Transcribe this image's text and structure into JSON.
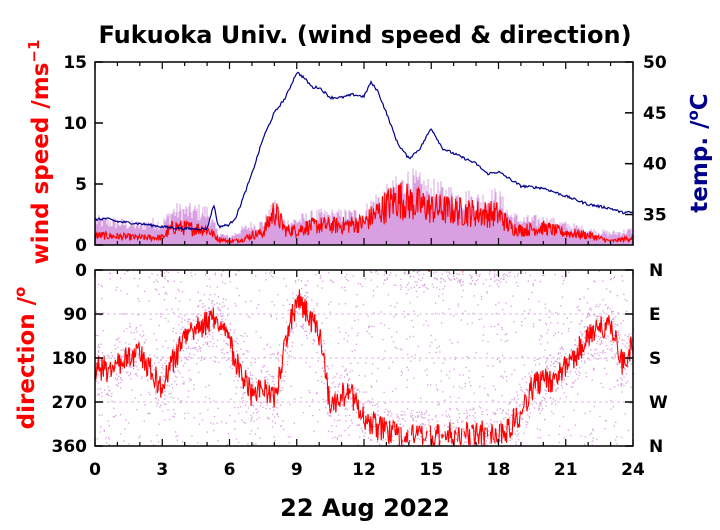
{
  "chart_data": [
    {
      "type": "line",
      "title": "Fukuoka Univ. (wind speed & direction)",
      "ylabel": "wind speed /ms",
      "ylabel_sup": "−1",
      "ylabel_right": "temp. /",
      "ylabel_right_sup": "o",
      "ylabel_right_unit": "C",
      "ylim": [
        0,
        15
      ],
      "ylim_right": [
        32,
        50
      ],
      "yticks": [
        "0",
        "5",
        "10",
        "15"
      ],
      "yticks_right": [
        "35",
        "40",
        "45",
        "50"
      ],
      "grid": false,
      "colors": {
        "gust": "#d8a0e0",
        "wind": "#ff0000",
        "temp": "#00008b"
      },
      "series": [
        {
          "role": "gust",
          "x": [
            0,
            1,
            2,
            2.5,
            3,
            3.5,
            4,
            5,
            5.5,
            6,
            6.5,
            7,
            7.5,
            8,
            8.5,
            9,
            9.5,
            10,
            11,
            12,
            12.5,
            13,
            13.5,
            14,
            15,
            16,
            17,
            18,
            18.5,
            19,
            20,
            21,
            22,
            23,
            24
          ],
          "values": [
            2.5,
            2.3,
            2,
            2.3,
            2.2,
            3.5,
            3.5,
            3.4,
            1.2,
            0.8,
            1.5,
            2,
            2.2,
            3.8,
            2.2,
            2.5,
            2.8,
            3,
            3,
            3.2,
            4.5,
            5,
            5.8,
            6.5,
            5.5,
            5,
            4.5,
            4.8,
            3,
            2.5,
            2.5,
            2,
            1.5,
            1.2,
            1.5
          ]
        },
        {
          "role": "wind",
          "x": [
            0,
            1,
            2,
            3,
            3.5,
            4,
            5,
            5.5,
            6,
            6.5,
            7,
            7.5,
            8,
            8.5,
            9,
            9.5,
            10,
            11,
            12,
            12.5,
            13,
            13.5,
            14,
            15,
            16,
            17,
            18,
            18.5,
            19,
            20,
            21,
            22,
            23,
            24
          ],
          "values": [
            0.8,
            0.7,
            0.6,
            0.6,
            1.5,
            1.4,
            1.3,
            0.5,
            0.3,
            0.4,
            0.8,
            1.0,
            2.8,
            1.2,
            1.2,
            1.5,
            1.6,
            1.6,
            1.8,
            2.5,
            3.2,
            3.8,
            3.5,
            3.0,
            2.8,
            2.6,
            2.5,
            1.5,
            1.2,
            1.4,
            1.0,
            0.8,
            0.3,
            0.6
          ]
        },
        {
          "role": "temp",
          "x": [
            0,
            0.5,
            1,
            2,
            3,
            4,
            5,
            5.3,
            5.5,
            6,
            6.3,
            7,
            7.5,
            8,
            8.5,
            9,
            9.3,
            9.7,
            10,
            10.5,
            11,
            11.5,
            12,
            12.3,
            12.6,
            13,
            13.5,
            14,
            14.5,
            15,
            15.5,
            16,
            17,
            17.5,
            18,
            19,
            20,
            21,
            22,
            23,
            23.5,
            24
          ],
          "values": [
            34.5,
            34.6,
            34.3,
            34.1,
            33.8,
            33.6,
            33.6,
            36,
            33.8,
            34,
            34.8,
            39,
            42.5,
            45,
            46.5,
            49,
            48.5,
            47.5,
            47.5,
            46.5,
            46.5,
            46.8,
            46.6,
            48,
            47.2,
            45,
            42,
            40.5,
            41.5,
            43.5,
            41.5,
            41,
            40,
            39,
            39.2,
            37.8,
            37.6,
            36.8,
            36,
            35.6,
            35.2,
            35.2
          ]
        }
      ]
    },
    {
      "type": "scatter",
      "xlabel": "22 Aug 2022",
      "ylabel": "direction /",
      "ylabel_sup": "o",
      "ylim": [
        360,
        0
      ],
      "xlim": [
        0,
        24
      ],
      "yticks": [
        "0",
        "90",
        "180",
        "270",
        "360"
      ],
      "yticks_right": [
        "N",
        "E",
        "S",
        "W",
        "N"
      ],
      "xticks": [
        "0",
        "3",
        "6",
        "9",
        "12",
        "15",
        "18",
        "21",
        "24"
      ],
      "series": [
        {
          "role": "direction",
          "x": [
            0,
            0.5,
            1,
            1.5,
            2,
            2.5,
            3,
            3.5,
            4,
            4.5,
            5,
            5.5,
            6,
            6.5,
            7,
            7.5,
            8,
            8.5,
            9,
            9.5,
            10,
            10.5,
            11,
            11.5,
            12,
            12.5,
            13,
            13.5,
            14,
            14.5,
            15,
            15.5,
            16,
            16.5,
            17,
            17.5,
            18,
            18.5,
            19,
            19.5,
            20,
            20.5,
            21,
            21.5,
            22,
            22.5,
            23,
            23.5,
            24
          ],
          "values": [
            200,
            205,
            190,
            175,
            165,
            210,
            240,
            185,
            140,
            120,
            105,
            100,
            150,
            210,
            260,
            240,
            270,
            150,
            60,
            90,
            130,
            280,
            250,
            260,
            300,
            320,
            330,
            340,
            345,
            340,
            340,
            345,
            335,
            340,
            330,
            340,
            345,
            320,
            290,
            240,
            230,
            220,
            200,
            170,
            130,
            120,
            110,
            190,
            150
          ]
        }
      ]
    }
  ]
}
